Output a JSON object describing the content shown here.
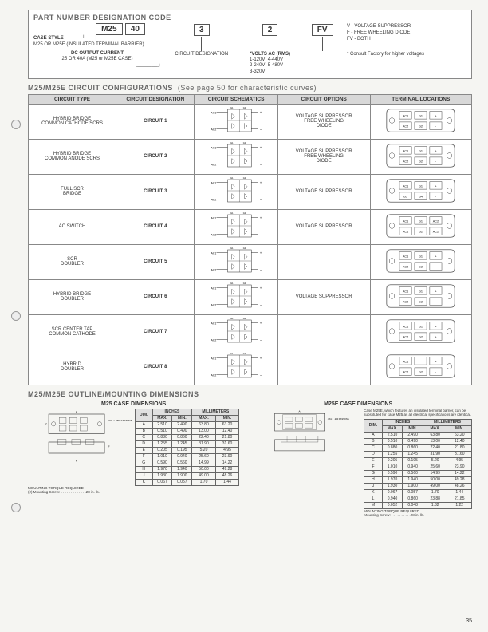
{
  "pnc": {
    "title": "PART NUMBER DESIGNATION CODE",
    "boxes": [
      "M25",
      "40",
      "3",
      "2",
      "FV"
    ],
    "case_style_label": "CASE STYLE",
    "case_style_text": "M25 OR M25E (INSULATED TERMINAL BARRIER)",
    "dc_label": "DC OUTPUT CURRENT",
    "dc_text": "25 OR 40A (M25 or M25E CASE)",
    "circuit_desig": "CIRCUIT DESIGNATION",
    "volts_label": "*VOLTS AC (RMS)",
    "volts": [
      "1-120V",
      "2-240V",
      "3-320V",
      "4-440V",
      "5-480V"
    ],
    "v_label": "V - VOLTAGE SUPPRESSOR",
    "f_label": "F - FREE WHEELING DIODE",
    "fv_label": "FV - BOTH",
    "consult": "* Consult Factory for higher voltages"
  },
  "config": {
    "title": "M25/M25E CIRCUIT CONFIGURATIONS",
    "subtitle": "(See page 50 for characteristic curves)",
    "headers": [
      "CIRCUIT TYPE",
      "CIRCUIT DESIGNATION",
      "CIRCUIT SCHEMATICS",
      "CIRCUIT OPTIONS",
      "TERMINAL LOCATIONS"
    ],
    "rows": [
      {
        "type": "HYBRID BRIDGE\nCOMMON CATHODE SCRS",
        "desig": "CIRCUIT 1",
        "opt": "VOLTAGE SUPPRESSOR\nFREE WHEELING\nDIODE",
        "term": [
          "AC1",
          "G1",
          "+",
          "AC2",
          "G2",
          "-"
        ]
      },
      {
        "type": "HYBRID BRIDGE\nCOMMON ANODE SCRS",
        "desig": "CIRCUIT 2",
        "opt": "VOLTAGE SUPPRESSOR\nFREE WHEELING\nDIODE",
        "term": [
          "AC1",
          "G1",
          "+",
          "AC2",
          "G2",
          "-"
        ]
      },
      {
        "type": "FULL SCR\nBRIDGE",
        "desig": "CIRCUIT 3",
        "opt": "VOLTAGE SUPPRESSOR",
        "term": [
          "AC1",
          "G1",
          "+",
          "G3",
          "G4",
          "-",
          "AC2",
          "G2",
          ""
        ]
      },
      {
        "type": "AC SWITCH",
        "desig": "CIRCUIT 4",
        "opt": "VOLTAGE SUPPRESSOR",
        "term": [
          "AC1",
          "G1",
          "AC2",
          "AC1",
          "G2",
          "AC2"
        ]
      },
      {
        "type": "SCR\nDOUBLER",
        "desig": "CIRCUIT 5",
        "opt": "",
        "term": [
          "AC1",
          "G1",
          "+",
          "AC2",
          "G2",
          "-"
        ]
      },
      {
        "type": "HYBRID BRIDGE\nDOUBLER",
        "desig": "CIRCUIT 6",
        "opt": "VOLTAGE SUPPRESSOR",
        "term": [
          "AC1",
          "G1",
          "+",
          "AC2",
          "G2",
          "-"
        ]
      },
      {
        "type": "SCR CENTER TAP\nCOMMON CATHODE",
        "desig": "CIRCUIT 7",
        "opt": "",
        "term": [
          "AC1",
          "G1",
          "+",
          "AC2",
          "G2",
          "+"
        ]
      },
      {
        "type": "HYBRID\nDOUBLER",
        "desig": "CIRCUIT 8",
        "opt": "",
        "term": [
          "AC1",
          "",
          "+",
          "AC2",
          "G2",
          "-"
        ]
      }
    ]
  },
  "dims": {
    "title": "M25/M25E OUTLINE/MOUNTING DIMENSIONS",
    "m25_title": "M25 CASE DIMENSIONS",
    "m25e_title": "M25E CASE DIMENSIONS",
    "dim_headers": [
      "DIM.",
      "INCHES",
      "MILLIMETERS"
    ],
    "dim_sub": [
      "MAX.",
      "MIN.",
      "MAX.",
      "MIN."
    ],
    "m25_rows": [
      [
        "A",
        "2.510",
        "2.490",
        "63.80",
        "63.20"
      ],
      [
        "B",
        "0.510",
        "0.490",
        "13.00",
        "12.40"
      ],
      [
        "C",
        "0.880",
        "0.860",
        "22.40",
        "21.80"
      ],
      [
        "D",
        "1.255",
        "1.245",
        "31.90",
        "31.60"
      ],
      [
        "E",
        "0.205",
        "0.195",
        "5.20",
        "4.95"
      ],
      [
        "F",
        "1.010",
        "0.940",
        "25.60",
        "23.90"
      ],
      [
        "G",
        "0.590",
        "0.560",
        "14.99",
        "14.22"
      ],
      [
        "H",
        "1.970",
        "1.940",
        "50.00",
        "49.28"
      ],
      [
        "J",
        "1.930",
        "1.900",
        "49.00",
        "48.26"
      ],
      [
        "K",
        "0.067",
        "0.057",
        "1.70",
        "1.44"
      ]
    ],
    "m25e_rows": [
      [
        "A",
        "2.510",
        "2.490",
        "63.80",
        "63.20"
      ],
      [
        "B",
        "0.510",
        "0.490",
        "13.00",
        "12.40"
      ],
      [
        "C",
        "0.880",
        "0.860",
        "22.40",
        "21.80"
      ],
      [
        "D",
        "1.255",
        "1.245",
        "31.90",
        "31.60"
      ],
      [
        "E",
        "0.205",
        "0.195",
        "5.20",
        "4.95"
      ],
      [
        "F",
        "1.010",
        "0.940",
        "25.60",
        "23.90"
      ],
      [
        "G",
        "0.590",
        "0.560",
        "14.99",
        "14.22"
      ],
      [
        "H",
        "1.970",
        "1.940",
        "50.00",
        "49.28"
      ],
      [
        "J",
        "1.930",
        "1.900",
        "49.00",
        "48.26"
      ],
      [
        "K",
        "0.067",
        "0.057",
        "1.70",
        "1.44"
      ],
      [
        "L",
        "0.940",
        "0.860",
        "23.88",
        "21.85"
      ],
      [
        "M",
        "0.052",
        "0.048",
        "1.32",
        "1.22"
      ]
    ],
    "torque_label": "MOUNTING TORQUE REQUIRED",
    "torque_val": "(2) Mounting Screw: . . . . . . . . . . . . .28 in.-lb.",
    "m25e_note": "Case M25E, which features an insulated terminal barrier, can be substituted for case M25 as all electrical specifications are identical."
  },
  "page": "35",
  "colors": {
    "border": "#888",
    "header_bg": "#d8d8d8",
    "line": "#555"
  }
}
